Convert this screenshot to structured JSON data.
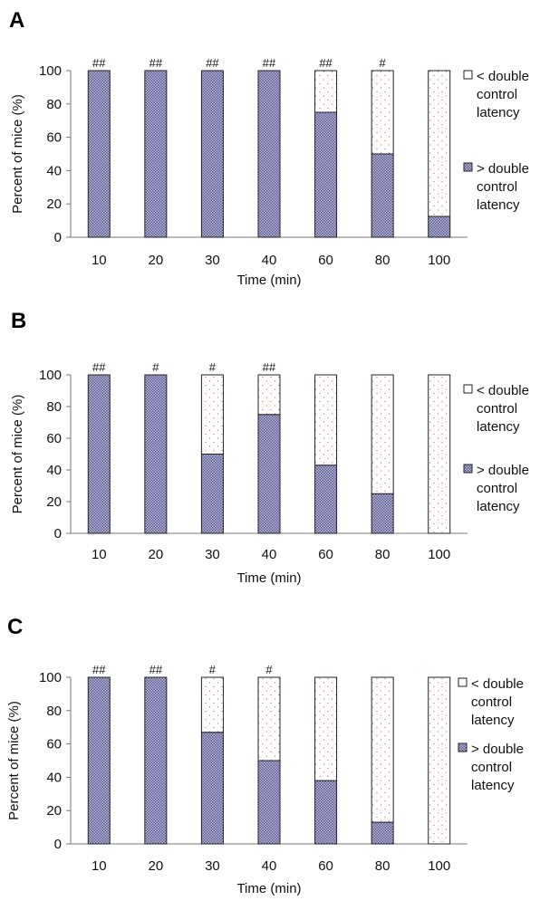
{
  "chart_data": [
    {
      "panel": "A",
      "type": "bar",
      "stacked": true,
      "categories": [
        "10",
        "20",
        "30",
        "40",
        "60",
        "80",
        "100"
      ],
      "xlabel": "Time (min)",
      "ylabel": "Percent of mice (%)",
      "ylim": [
        0,
        100
      ],
      "yticks": [
        "0",
        "20",
        "40",
        "60",
        "80",
        "100"
      ],
      "series": [
        {
          "name": "> double control latency",
          "values": [
            100,
            100,
            100,
            100,
            75,
            50,
            12.5
          ],
          "color": "#8a8ab8"
        },
        {
          "name": "< double control latency",
          "values": [
            0,
            0,
            0,
            0,
            25,
            50,
            87.5
          ],
          "color": "#ffffff"
        }
      ],
      "annotations": [
        "##",
        "##",
        "##",
        "##",
        "##",
        "#",
        ""
      ],
      "legend": [
        {
          "symbol": "□",
          "lines": [
            "< double",
            "control",
            "latency"
          ]
        },
        {
          "symbol": "▩",
          "lines": [
            "> double",
            "control",
            "latency"
          ]
        }
      ],
      "legend_position": "right"
    },
    {
      "panel": "B",
      "type": "bar",
      "stacked": true,
      "categories": [
        "10",
        "20",
        "30",
        "40",
        "60",
        "80",
        "100"
      ],
      "xlabel": "Time (min)",
      "ylabel": "Percent of mice (%)",
      "ylim": [
        0,
        100
      ],
      "yticks": [
        "0",
        "20",
        "40",
        "60",
        "80",
        "100"
      ],
      "series": [
        {
          "name": "> double control latency",
          "values": [
            100,
            100,
            50,
            75,
            43,
            25,
            0
          ],
          "color": "#8a8ab8"
        },
        {
          "name": "< double control latency",
          "values": [
            0,
            0,
            50,
            25,
            57,
            75,
            100
          ],
          "color": "#ffffff"
        }
      ],
      "annotations": [
        "##",
        "#",
        "#",
        "##",
        "",
        "",
        ""
      ],
      "legend": [
        {
          "symbol": "□",
          "lines": [
            "< double",
            "control",
            "latency"
          ]
        },
        {
          "symbol": "▩",
          "lines": [
            "> double",
            "control",
            "latency"
          ]
        }
      ],
      "legend_position": "right"
    },
    {
      "panel": "C",
      "type": "bar",
      "stacked": true,
      "categories": [
        "10",
        "20",
        "30",
        "40",
        "60",
        "80",
        "100"
      ],
      "xlabel": "Time (min)",
      "ylabel": "Percent of mice (%)",
      "ylim": [
        0,
        100
      ],
      "yticks": [
        "0",
        "20",
        "40",
        "60",
        "80",
        "100"
      ],
      "series": [
        {
          "name": "> double control latency",
          "values": [
            100,
            100,
            67,
            50,
            38,
            13,
            0
          ],
          "color": "#8a8ab8"
        },
        {
          "name": "< double control latency",
          "values": [
            0,
            0,
            33,
            50,
            62,
            87,
            100
          ],
          "color": "#ffffff"
        }
      ],
      "annotations": [
        "##",
        "##",
        "#",
        "#",
        "",
        "",
        ""
      ],
      "legend": [
        {
          "symbol": "□",
          "lines": [
            "< double",
            "control",
            "latency"
          ]
        },
        {
          "symbol": "▩",
          "lines": [
            "> double",
            "control",
            "latency"
          ]
        }
      ],
      "legend_position": "right"
    }
  ]
}
